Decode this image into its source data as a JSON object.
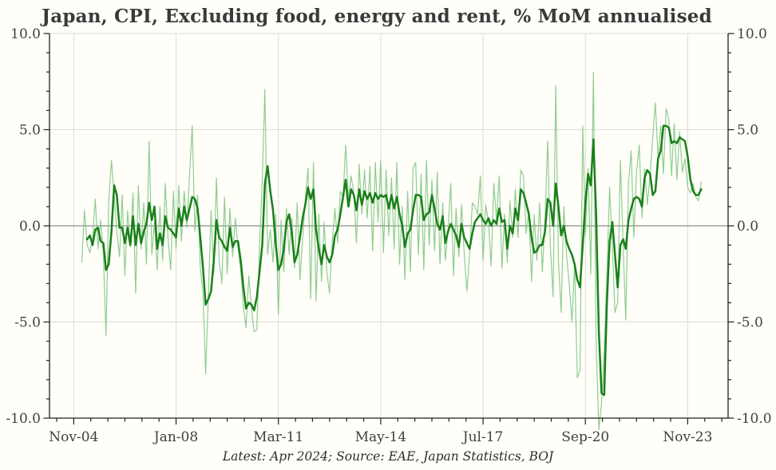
{
  "title": "Japan, CPI, Excluding food, energy and rent, % MoM annualised",
  "caption": "Latest: Apr 2024; Source: EAE, Japan Statistics, BOJ",
  "colors": {
    "background": "#fffef9",
    "grid": "#dddcd4",
    "zero_line": "#8a8a8a",
    "spine": "#1f1f1f",
    "tick_text": "#3f3f3f",
    "title_text": "#3a3a3a",
    "series_thin": "#7cc47c",
    "series_thick": "#1a801a"
  },
  "chart_data": {
    "type": "line",
    "title": "Japan, CPI, Excluding food, energy and rent, % MoM annualised",
    "caption": "Latest: Apr 2024; Source: EAE, Japan Statistics, BOJ",
    "legend": "none",
    "grid": "major-light",
    "x": {
      "start": "2004-02",
      "end": "2025-02",
      "total_months": 252,
      "major_tick_labels": [
        "Nov-04",
        "Jan-08",
        "Mar-11",
        "May-14",
        "Jul-17",
        "Sep-20",
        "Nov-23"
      ],
      "major_tick_month_index": [
        9,
        47,
        85,
        123,
        161,
        199,
        237
      ],
      "minor_tick_interval_months": 6.3333
    },
    "y": {
      "min": -10,
      "max": 10,
      "major_ticks": [
        10,
        5,
        0,
        -5,
        -10
      ],
      "major_tick_labels": [
        "10.0",
        "5.0",
        "0.0",
        "-5.0",
        "-10.0"
      ],
      "major_tick_interval": 5,
      "minor_tick_interval": 1,
      "grid_values": [
        10,
        5,
        -5
      ],
      "zero_line": 0,
      "labels_on_both_sides": true
    },
    "series": [
      {
        "name": "monthly rate (thin light-green line)",
        "color": "#7cc47c",
        "width": 1.2,
        "opacity": 0.85,
        "start_month": "2005-02",
        "start_index": 12,
        "values": [
          -1.9,
          0.8,
          -1.0,
          -1.4,
          -0.6,
          1.4,
          -1.2,
          0.3,
          -1.5,
          -5.7,
          1.3,
          3.4,
          1.6,
          -0.3,
          -1.6,
          1.6,
          -2.6,
          0.8,
          -1.1,
          1.7,
          -3.5,
          2.1,
          -1.2,
          1.2,
          -2.0,
          4.4,
          -1.5,
          0.2,
          -2.3,
          1.0,
          -1.8,
          2.2,
          -0.6,
          -2.3,
          1.8,
          -1.2,
          2.1,
          -0.8,
          1.8,
          -0.1,
          2.6,
          5.2,
          -0.3,
          1.6,
          -2.2,
          -3.5,
          -7.7,
          -3.6,
          0.8,
          -2.5,
          2.5,
          -1.8,
          -3.0,
          1.5,
          -2.5,
          0.9,
          -1.6,
          0.4,
          -1.1,
          -2.3,
          -4.2,
          -5.3,
          -2.6,
          -4.3,
          -5.5,
          -5.4,
          -1.0,
          2.3,
          7.1,
          -1.5,
          -0.2,
          -1.9,
          0.6,
          -4.6,
          0.3,
          -2.4,
          0.9,
          -1.5,
          0.4,
          -2.2,
          1.2,
          -2.8,
          -0.7,
          1.4,
          3.0,
          -3.8,
          3.3,
          -3.9,
          0.6,
          -2.9,
          0.2,
          -2.4,
          -3.5,
          -0.8,
          0.9,
          -0.9,
          1.8,
          1.5,
          4.2,
          1.4,
          2.6,
          1.7,
          -0.9,
          3.2,
          0.6,
          2.9,
          0.4,
          3.1,
          -1.3,
          3.3,
          0.2,
          3.4,
          -1.4,
          2.9,
          -0.5,
          2.5,
          -1.2,
          3.3,
          -2.0,
          1.0,
          -2.8,
          1.8,
          -2.4,
          3.0,
          3.3,
          -1.5,
          2.7,
          -2.3,
          3.4,
          -1.0,
          2.4,
          -1.3,
          2.8,
          -2.0,
          1.2,
          -1.8,
          -0.2,
          2.2,
          -2.6,
          0.9,
          -1.6,
          1.1,
          -1.4,
          -3.4,
          -1.5,
          1.2,
          1.0,
          0.6,
          2.6,
          -1.8,
          1.1,
          0.2,
          -2.1,
          2.2,
          0.3,
          2.6,
          -2.2,
          0.6,
          -1.9,
          1.3,
          -0.6,
          1.9,
          -0.6,
          2.9,
          2.6,
          -0.4,
          0.8,
          -2.9,
          0.6,
          -1.8,
          1.2,
          -2.4,
          0.3,
          4.4,
          -1.1,
          -3.7,
          7.3,
          -1.8,
          -4.5,
          1.0,
          -1.5,
          -3.0,
          -5.0,
          -2.0,
          -7.9,
          -7.5,
          5.2,
          -0.5,
          3.0,
          -2.5,
          8.0,
          -6.0,
          -10.6,
          -9.2,
          -6.5,
          -2.5,
          2.0,
          -1.2,
          -4.5,
          -4.0,
          3.4,
          -1.0,
          -4.9,
          2.2,
          3.9,
          -0.6,
          2.8,
          4.2,
          0.4,
          3.0,
          1.1,
          2.6,
          4.6,
          6.4,
          3.5,
          5.2,
          2.7,
          6.1,
          5.5,
          2.6,
          5.3,
          2.4,
          4.9,
          2.8,
          3.5,
          2.0,
          1.7,
          2.2,
          1.5,
          1.3,
          2.3
        ]
      },
      {
        "name": "smoothed 3-month average (thick dark-green line)",
        "color": "#1a801a",
        "width": 2.5,
        "opacity": 1,
        "start_month": "2005-02",
        "start_index": 12,
        "values": [
          null,
          null,
          -0.7,
          -0.5,
          -1.0,
          -0.2,
          -0.1,
          -0.8,
          -0.9,
          -2.3,
          -2.0,
          -0.3,
          2.1,
          1.6,
          -0.1,
          -0.1,
          -0.9,
          -0.1,
          -1.0,
          0.5,
          -1.0,
          0.1,
          -0.9,
          -0.3,
          0.1,
          1.2,
          0.3,
          1.0,
          -1.2,
          -0.4,
          -1.0,
          0.5,
          -0.1,
          -0.2,
          -0.4,
          -0.6,
          0.9,
          0.0,
          1.0,
          0.3,
          0.9,
          1.5,
          1.4,
          0.9,
          -0.6,
          -2.2,
          -4.1,
          -3.8,
          -3.4,
          -1.8,
          0.3,
          -0.6,
          -0.8,
          -1.1,
          -1.3,
          -0.1,
          -1.1,
          -0.8,
          -0.8,
          -1.8,
          -3.2,
          -4.3,
          -4.0,
          -4.1,
          -4.4,
          -3.7,
          -2.4,
          -1.0,
          2.2,
          3.1,
          1.8,
          0.8,
          -0.9,
          -2.3,
          -2.0,
          -1.2,
          0.2,
          0.6,
          -0.4,
          -1.9,
          -1.5,
          -0.6,
          0.4,
          1.1,
          2.0,
          1.4,
          1.9,
          -0.2,
          -1.2,
          -2.0,
          -1.0,
          -1.6,
          -1.9,
          -1.5,
          -0.5,
          -0.2,
          0.6,
          1.5,
          2.4,
          1.0,
          1.9,
          1.6,
          0.8,
          1.9,
          1.1,
          1.8,
          1.4,
          1.7,
          1.2,
          1.7,
          1.4,
          1.6,
          1.5,
          1.6,
          0.9,
          1.6,
          0.9,
          1.5,
          0.6,
          0.0,
          -1.1,
          -0.4,
          -0.2,
          0.8,
          1.6,
          1.6,
          1.5,
          0.3,
          0.6,
          0.7,
          1.6,
          0.9,
          0.1,
          -0.2,
          0.5,
          -0.9,
          -0.3,
          0.1,
          -0.2,
          -0.5,
          -1.1,
          0.1,
          -0.6,
          -0.9,
          -1.2,
          -0.4,
          0.2,
          0.4,
          0.6,
          0.3,
          0.1,
          0.4,
          0.0,
          0.3,
          0.1,
          0.9,
          0.2,
          0.3,
          -1.2,
          0.0,
          -0.4,
          0.9,
          0.3,
          1.9,
          1.7,
          1.2,
          0.6,
          -0.6,
          -1.4,
          -1.3,
          -1.0,
          -1.0,
          -0.3,
          1.4,
          1.2,
          0.0,
          2.2,
          1.0,
          -0.5,
          0.0,
          -0.8,
          -1.2,
          -1.5,
          -2.0,
          -2.8,
          -3.2,
          -1.0,
          1.2,
          2.7,
          2.1,
          4.5,
          0.6,
          -5.5,
          -8.7,
          -8.8,
          -4.0,
          -0.8,
          0.2,
          -1.5,
          -3.2,
          -1.0,
          -0.7,
          -1.2,
          0.3,
          0.9,
          1.4,
          1.5,
          1.4,
          1.0,
          2.5,
          2.9,
          2.7,
          1.6,
          1.8,
          3.5,
          3.9,
          5.2,
          5.2,
          5.1,
          4.3,
          4.4,
          4.3,
          4.6,
          4.5,
          4.4,
          3.6,
          2.4,
          1.8,
          1.6,
          1.6,
          1.9
        ]
      }
    ]
  }
}
